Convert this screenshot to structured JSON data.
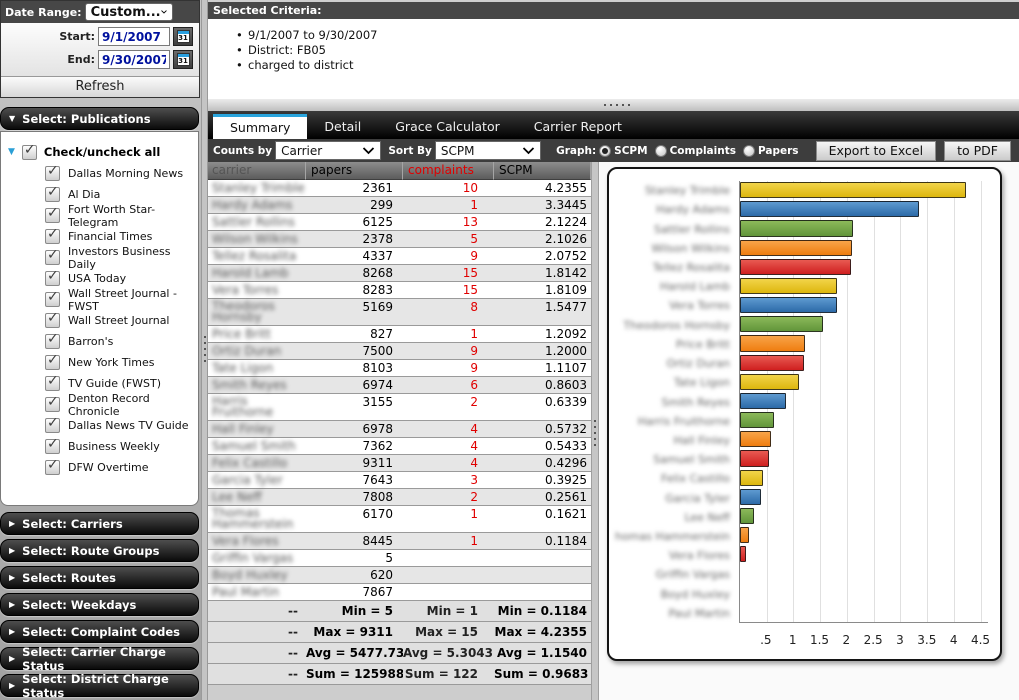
{
  "colors": {
    "accent_blue": "#2aa5dd",
    "complaint_red": "#e00000",
    "date_text_navy": "#00119e",
    "panel_header_gray": "#474747"
  },
  "sidebar": {
    "date_range": {
      "label": "Date Range:",
      "value": "Custom...",
      "start_label": "Start:",
      "start_value": "9/1/2007",
      "end_label": "End:",
      "end_value": "9/30/2007",
      "calendar_day": "31",
      "refresh_label": "Refresh"
    },
    "publications": {
      "header": "Select: Publications",
      "check_all_label": "Check/uncheck all",
      "check_all_checked": true,
      "items": [
        {
          "label": "Dallas Morning News",
          "checked": true
        },
        {
          "label": "Al Dia",
          "checked": true
        },
        {
          "label": "Fort Worth Star-Telegram",
          "checked": true
        },
        {
          "label": "Financial Times",
          "checked": true
        },
        {
          "label": "Investors Business Daily",
          "checked": true
        },
        {
          "label": "USA Today",
          "checked": true
        },
        {
          "label": "Wall Street Journal -FWST",
          "checked": true
        },
        {
          "label": "Wall Street Journal",
          "checked": true
        },
        {
          "label": "Barron's",
          "checked": true
        },
        {
          "label": "New York Times",
          "checked": true
        },
        {
          "label": "TV Guide (FWST)",
          "checked": true
        },
        {
          "label": "Denton Record Chronicle",
          "checked": true
        },
        {
          "label": "Dallas News TV Guide",
          "checked": true
        },
        {
          "label": "Business Weekly",
          "checked": true
        },
        {
          "label": "DFW Overtime",
          "checked": true
        }
      ]
    },
    "accordions": [
      "Select: Carriers",
      "Select: Route Groups",
      "Select: Routes",
      "Select: Weekdays",
      "Select: Complaint Codes",
      "Select: Carrier Charge Status",
      "Select: District Charge Status"
    ]
  },
  "criteria": {
    "header": "Selected Criteria:",
    "items": [
      "9/1/2007 to 9/30/2007",
      "District: FB05",
      "charged to district"
    ]
  },
  "tabs": [
    {
      "label": "Summary",
      "active": true
    },
    {
      "label": "Detail",
      "active": false
    },
    {
      "label": "Grace Calculator",
      "active": false
    },
    {
      "label": "Carrier Report",
      "active": false
    }
  ],
  "toolbar": {
    "counts_by_label": "Counts by",
    "counts_by_value": "Carrier",
    "sort_by_label": "Sort By",
    "sort_by_value": "SCPM",
    "graph_label": "Graph:",
    "graph_options": [
      {
        "label": "SCPM",
        "selected": true
      },
      {
        "label": "Complaints",
        "selected": false
      },
      {
        "label": "Papers",
        "selected": false
      }
    ],
    "export_excel_label": "Export to Excel",
    "to_pdf_label": "to PDF"
  },
  "table": {
    "columns": [
      "carrier",
      "papers",
      "complaints",
      "SCPM"
    ],
    "note": "carrier names are blurred/redacted in the source image; placeholder strings below are rendered blurred",
    "rows": [
      {
        "carrier_blurred": "Stanley Trimble",
        "papers": "2361",
        "complaints": "10",
        "scpm": "4.2355",
        "tall": false
      },
      {
        "carrier_blurred": "Hardy Adams",
        "papers": "299",
        "complaints": "1",
        "scpm": "3.3445",
        "tall": false
      },
      {
        "carrier_blurred": "Sattler Rollins",
        "papers": "6125",
        "complaints": "13",
        "scpm": "2.1224",
        "tall": false
      },
      {
        "carrier_blurred": "Wilson Wilkins",
        "papers": "2378",
        "complaints": "5",
        "scpm": "2.1026",
        "tall": false
      },
      {
        "carrier_blurred": "Tellez Rosalita",
        "papers": "4337",
        "complaints": "9",
        "scpm": "2.0752",
        "tall": false
      },
      {
        "carrier_blurred": "Harold Lamb",
        "papers": "8268",
        "complaints": "15",
        "scpm": "1.8142",
        "tall": false
      },
      {
        "carrier_blurred": "Vera Torres",
        "papers": "8283",
        "complaints": "15",
        "scpm": "1.8109",
        "tall": false
      },
      {
        "carrier_blurred": "Theodoros Hornsby",
        "papers": "5169",
        "complaints": "8",
        "scpm": "1.5477",
        "tall": true
      },
      {
        "carrier_blurred": "Price Britt",
        "papers": "827",
        "complaints": "1",
        "scpm": "1.2092",
        "tall": false
      },
      {
        "carrier_blurred": "Ortiz Duran",
        "papers": "7500",
        "complaints": "9",
        "scpm": "1.2000",
        "tall": false
      },
      {
        "carrier_blurred": "Tate Ligon",
        "papers": "8103",
        "complaints": "9",
        "scpm": "1.1107",
        "tall": false
      },
      {
        "carrier_blurred": "Smith Reyes",
        "papers": "6974",
        "complaints": "6",
        "scpm": "0.8603",
        "tall": false
      },
      {
        "carrier_blurred": "Harris Fruithorne",
        "papers": "3155",
        "complaints": "2",
        "scpm": "0.6339",
        "tall": true
      },
      {
        "carrier_blurred": "Hall Finley",
        "papers": "6978",
        "complaints": "4",
        "scpm": "0.5732",
        "tall": false
      },
      {
        "carrier_blurred": "Samuel Smith",
        "papers": "7362",
        "complaints": "4",
        "scpm": "0.5433",
        "tall": false
      },
      {
        "carrier_blurred": "Felix Castillo",
        "papers": "9311",
        "complaints": "4",
        "scpm": "0.4296",
        "tall": false
      },
      {
        "carrier_blurred": "Garcia Tyler",
        "papers": "7643",
        "complaints": "3",
        "scpm": "0.3925",
        "tall": false
      },
      {
        "carrier_blurred": "Lee Neff",
        "papers": "7808",
        "complaints": "2",
        "scpm": "0.2561",
        "tall": false
      },
      {
        "carrier_blurred": "Thomas Hammerstein",
        "papers": "6170",
        "complaints": "1",
        "scpm": "0.1621",
        "tall": true
      },
      {
        "carrier_blurred": "Vera Flores",
        "papers": "8445",
        "complaints": "1",
        "scpm": "0.1184",
        "tall": false
      },
      {
        "carrier_blurred": "Griffin Vargas",
        "papers": "5",
        "complaints": "",
        "scpm": "",
        "tall": false
      },
      {
        "carrier_blurred": "Boyd Huxley",
        "papers": "620",
        "complaints": "",
        "scpm": "",
        "tall": false
      },
      {
        "carrier_blurred": "Paul Martin",
        "papers": "7867",
        "complaints": "",
        "scpm": "",
        "tall": false
      }
    ],
    "summary_rows": [
      {
        "carrier": "--",
        "papers": "Min = 5",
        "complaints": "Min = 1",
        "scpm": "Min = 0.1184"
      },
      {
        "carrier": "--",
        "papers": "Max = 9311",
        "complaints": "Max = 15",
        "scpm": "Max = 4.2355"
      },
      {
        "carrier": "--",
        "papers": "Avg = 5477.7391",
        "complaints": "Avg = 5.3043",
        "scpm": "Avg = 1.1540"
      },
      {
        "carrier": "--",
        "papers": "Sum = 125988",
        "complaints": "Sum = 122",
        "scpm": "Sum = 0.9683"
      }
    ]
  },
  "chart_data": {
    "type": "bar",
    "orientation": "horizontal",
    "series_name": "SCPM",
    "labels_blurred": true,
    "categories_blurred": [
      "Stanley Trimble",
      "Hardy Adams",
      "Sattler Rollins",
      "Wilson Wilkins",
      "Tellez Rosalita",
      "Harold Lamb",
      "Vera Torres",
      "Theodoros Hornsby",
      "Price Britt",
      "Ortiz Duran",
      "Tate Ligon",
      "Smith Reyes",
      "Harris Fruithorne",
      "Hall Finley",
      "Samuel Smith",
      "Felix Castillo",
      "Garcia Tyler",
      "Lee Neff",
      "Thomas Hammerstein",
      "Vera Flores",
      "Griffin Vargas",
      "Boyd Huxley",
      "Paul Martin"
    ],
    "values": [
      4.2355,
      3.3445,
      2.1224,
      2.1026,
      2.0752,
      1.8142,
      1.8109,
      1.5477,
      1.2092,
      1.2,
      1.1107,
      0.8603,
      0.6339,
      0.5732,
      0.5433,
      0.4296,
      0.3925,
      0.2561,
      0.1621,
      0.1184,
      null,
      null,
      null
    ],
    "xlim": [
      0,
      4.5
    ],
    "x_ticks": [
      ".5",
      "1",
      "1.5",
      "2",
      "2.5",
      "3",
      "3.5",
      "4",
      "4.5"
    ],
    "grid": true,
    "bar_color_cycle": [
      {
        "top": "#f2d44a",
        "bottom": "#ddb70e"
      },
      {
        "top": "#5e9ad0",
        "bottom": "#2c6aa8"
      },
      {
        "top": "#8cb95a",
        "bottom": "#61953a"
      },
      {
        "top": "#f8a449",
        "bottom": "#ef7d10"
      },
      {
        "top": "#e85a52",
        "bottom": "#cf1f1f"
      }
    ]
  }
}
